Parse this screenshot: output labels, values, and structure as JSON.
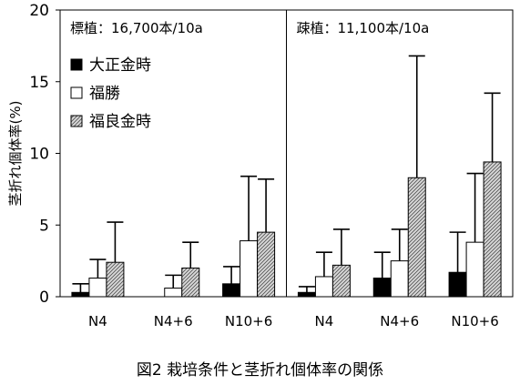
{
  "chart_data": {
    "type": "bar",
    "ylabel": "茎折れ個体率(%)",
    "ylim": [
      0,
      20
    ],
    "yticks": [
      0,
      5,
      10,
      15,
      20
    ],
    "caption": "図2 栽培条件と茎折れ個体率の関係",
    "panels": [
      {
        "label": "標植：16,700本/10a",
        "categories": [
          "N4",
          "N4+6",
          "N10+6"
        ]
      },
      {
        "label": "疎植：11,100本/10a",
        "categories": [
          "N4",
          "N4+6",
          "N10+6"
        ]
      }
    ],
    "legend_position": "left",
    "series": [
      {
        "name": "大正金時",
        "pattern": "solid-black",
        "values": [
          0.3,
          0.0,
          0.9,
          0.3,
          1.3,
          1.7
        ],
        "error": [
          0.6,
          0.0,
          1.2,
          0.4,
          1.8,
          2.8
        ]
      },
      {
        "name": "福勝",
        "pattern": "white",
        "values": [
          1.3,
          0.6,
          3.9,
          1.4,
          2.5,
          3.8
        ],
        "error": [
          1.3,
          0.9,
          4.5,
          1.7,
          2.2,
          4.8
        ]
      },
      {
        "name": "福良金時",
        "pattern": "hatched",
        "values": [
          2.4,
          2.0,
          4.5,
          2.2,
          8.3,
          9.4
        ],
        "error": [
          2.8,
          1.8,
          3.7,
          2.5,
          8.5,
          4.8
        ]
      }
    ]
  }
}
